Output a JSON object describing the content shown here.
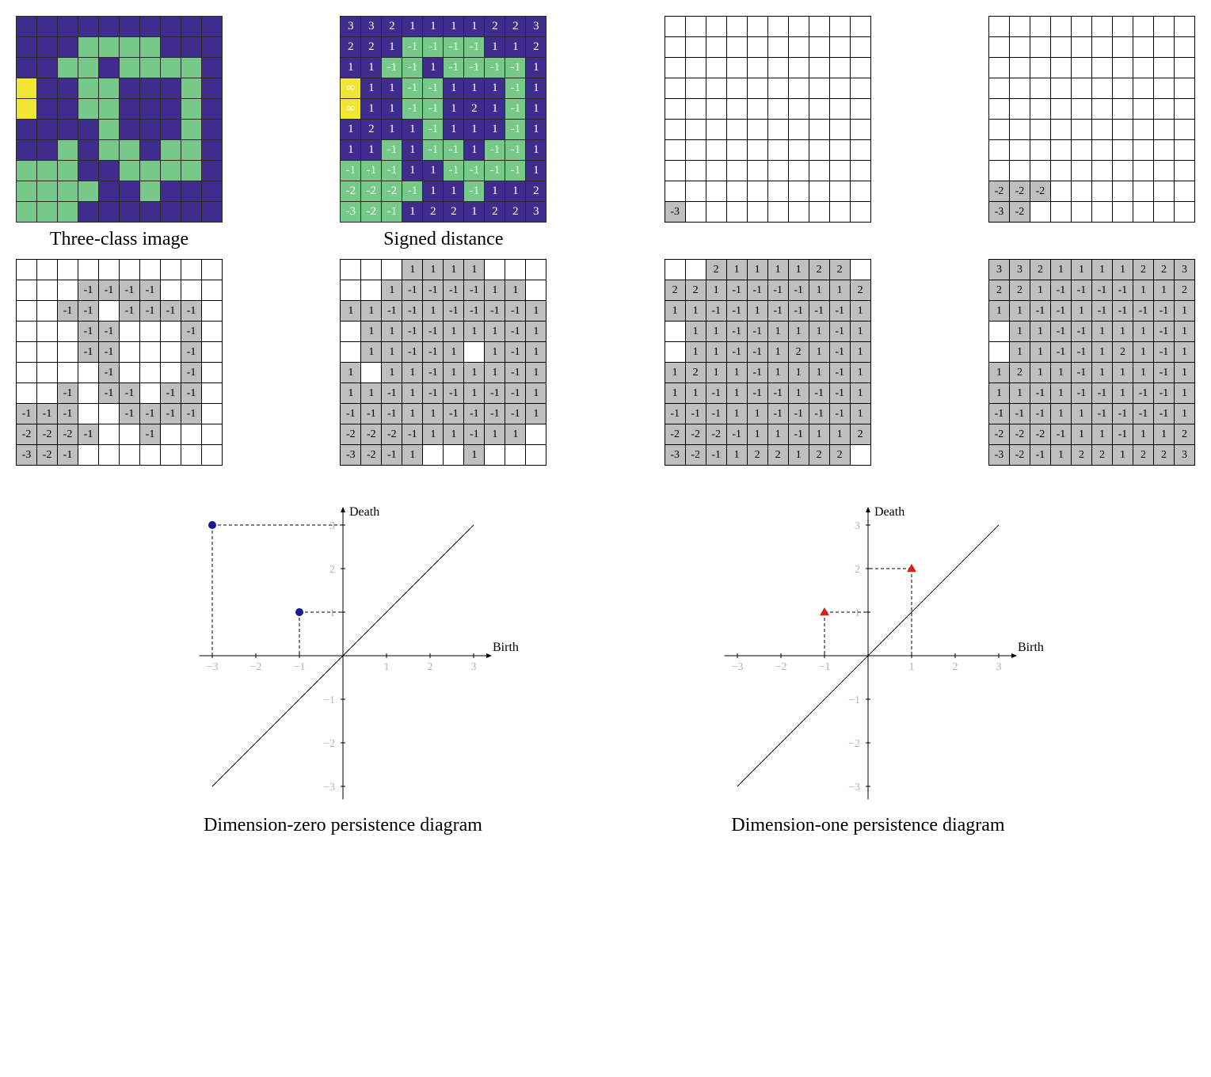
{
  "colors": {
    "purple": "#3e2d8c",
    "green": "#77c98a",
    "yellow": "#f2e635",
    "gray": "#bfbfbf",
    "white": "#ffffff",
    "black": "#000000",
    "dot0": "#1a1a8c",
    "dot1": "#d62020",
    "gridline": "#b2b2b2"
  },
  "captions": {
    "threeClass": "Three-class image",
    "signed": "Signed distance",
    "pd0": "Dimension-zero persistence diagram",
    "pd1": "Dimension-one persistence diagram"
  },
  "row1": {
    "threeClassColors": [
      [
        "p",
        "p",
        "p",
        "p",
        "p",
        "p",
        "p",
        "p",
        "p",
        "p"
      ],
      [
        "p",
        "p",
        "p",
        "g",
        "g",
        "g",
        "g",
        "p",
        "p",
        "p"
      ],
      [
        "p",
        "p",
        "g",
        "g",
        "p",
        "g",
        "g",
        "g",
        "g",
        "p"
      ],
      [
        "y",
        "p",
        "p",
        "g",
        "g",
        "p",
        "p",
        "p",
        "g",
        "p"
      ],
      [
        "y",
        "p",
        "p",
        "g",
        "g",
        "p",
        "p",
        "p",
        "g",
        "p"
      ],
      [
        "p",
        "p",
        "p",
        "p",
        "g",
        "p",
        "p",
        "p",
        "g",
        "p"
      ],
      [
        "p",
        "p",
        "g",
        "p",
        "g",
        "g",
        "p",
        "g",
        "g",
        "p"
      ],
      [
        "g",
        "g",
        "g",
        "p",
        "p",
        "g",
        "g",
        "g",
        "g",
        "p"
      ],
      [
        "g",
        "g",
        "g",
        "g",
        "p",
        "p",
        "g",
        "p",
        "p",
        "p"
      ],
      [
        "g",
        "g",
        "g",
        "p",
        "p",
        "p",
        "p",
        "p",
        "p",
        "p"
      ]
    ],
    "signedValues": [
      [
        "3",
        "3",
        "2",
        "1",
        "1",
        "1",
        "1",
        "2",
        "2",
        "3"
      ],
      [
        "2",
        "2",
        "1",
        "-1",
        "-1",
        "-1",
        "-1",
        "1",
        "1",
        "2"
      ],
      [
        "1",
        "1",
        "-1",
        "-1",
        "1",
        "-1",
        "-1",
        "-1",
        "-1",
        "1"
      ],
      [
        "∞",
        "1",
        "1",
        "-1",
        "-1",
        "1",
        "1",
        "1",
        "-1",
        "1"
      ],
      [
        "∞",
        "1",
        "1",
        "-1",
        "-1",
        "1",
        "2",
        "1",
        "-1",
        "1"
      ],
      [
        "1",
        "2",
        "1",
        "1",
        "-1",
        "1",
        "1",
        "1",
        "-1",
        "1"
      ],
      [
        "1",
        "1",
        "-1",
        "1",
        "-1",
        "-1",
        "1",
        "-1",
        "-1",
        "1"
      ],
      [
        "-1",
        "-1",
        "-1",
        "1",
        "1",
        "-1",
        "-1",
        "-1",
        "-1",
        "1"
      ],
      [
        "-2",
        "-2",
        "-2",
        "-1",
        "1",
        "1",
        "-1",
        "1",
        "1",
        "2"
      ],
      [
        "-3",
        "-2",
        "-1",
        "1",
        "2",
        "2",
        "1",
        "2",
        "2",
        "3"
      ]
    ],
    "signedColors": [
      [
        "p",
        "p",
        "p",
        "p",
        "p",
        "p",
        "p",
        "p",
        "p",
        "p"
      ],
      [
        "p",
        "p",
        "p",
        "g",
        "g",
        "g",
        "g",
        "p",
        "p",
        "p"
      ],
      [
        "p",
        "p",
        "g",
        "g",
        "p",
        "g",
        "g",
        "g",
        "g",
        "p"
      ],
      [
        "y",
        "p",
        "p",
        "g",
        "g",
        "p",
        "p",
        "p",
        "g",
        "p"
      ],
      [
        "y",
        "p",
        "p",
        "g",
        "g",
        "p",
        "p",
        "p",
        "g",
        "p"
      ],
      [
        "p",
        "p",
        "p",
        "p",
        "g",
        "p",
        "p",
        "p",
        "g",
        "p"
      ],
      [
        "p",
        "p",
        "g",
        "p",
        "g",
        "g",
        "p",
        "g",
        "g",
        "p"
      ],
      [
        "g",
        "g",
        "g",
        "p",
        "p",
        "g",
        "g",
        "g",
        "g",
        "p"
      ],
      [
        "g",
        "g",
        "g",
        "g",
        "p",
        "p",
        "g",
        "p",
        "p",
        "p"
      ],
      [
        "g",
        "g",
        "g",
        "p",
        "p",
        "p",
        "p",
        "p",
        "p",
        "p"
      ]
    ],
    "filtration_m3": [
      [
        "",
        "",
        "",
        "",
        "",
        "",
        "",
        "",
        "",
        ""
      ],
      [
        "",
        "",
        "",
        "",
        "",
        "",
        "",
        "",
        "",
        ""
      ],
      [
        "",
        "",
        "",
        "",
        "",
        "",
        "",
        "",
        "",
        ""
      ],
      [
        "",
        "",
        "",
        "",
        "",
        "",
        "",
        "",
        "",
        ""
      ],
      [
        "",
        "",
        "",
        "",
        "",
        "",
        "",
        "",
        "",
        ""
      ],
      [
        "",
        "",
        "",
        "",
        "",
        "",
        "",
        "",
        "",
        ""
      ],
      [
        "",
        "",
        "",
        "",
        "",
        "",
        "",
        "",
        "",
        ""
      ],
      [
        "",
        "",
        "",
        "",
        "",
        "",
        "",
        "",
        "",
        ""
      ],
      [
        "",
        "",
        "",
        "",
        "",
        "",
        "",
        "",
        "",
        ""
      ],
      [
        "-3",
        "",
        "",
        "",
        "",
        "",
        "",
        "",
        "",
        ""
      ]
    ],
    "filtration_m2": [
      [
        "",
        "",
        "",
        "",
        "",
        "",
        "",
        "",
        "",
        ""
      ],
      [
        "",
        "",
        "",
        "",
        "",
        "",
        "",
        "",
        "",
        ""
      ],
      [
        "",
        "",
        "",
        "",
        "",
        "",
        "",
        "",
        "",
        ""
      ],
      [
        "",
        "",
        "",
        "",
        "",
        "",
        "",
        "",
        "",
        ""
      ],
      [
        "",
        "",
        "",
        "",
        "",
        "",
        "",
        "",
        "",
        ""
      ],
      [
        "",
        "",
        "",
        "",
        "",
        "",
        "",
        "",
        "",
        ""
      ],
      [
        "",
        "",
        "",
        "",
        "",
        "",
        "",
        "",
        "",
        ""
      ],
      [
        "",
        "",
        "",
        "",
        "",
        "",
        "",
        "",
        "",
        ""
      ],
      [
        "-2",
        "-2",
        "-2",
        "",
        "",
        "",
        "",
        "",
        "",
        ""
      ],
      [
        "-3",
        "-2",
        "",
        "",
        "",
        "",
        "",
        "",
        "",
        ""
      ]
    ]
  },
  "row2": {
    "filtration_m1": [
      [
        "",
        "",
        "",
        "",
        "",
        "",
        "",
        "",
        "",
        ""
      ],
      [
        "",
        "",
        "",
        "-1",
        "-1",
        "-1",
        "-1",
        "",
        "",
        ""
      ],
      [
        "",
        "",
        "-1",
        "-1",
        "",
        "-1",
        "-1",
        "-1",
        "-1",
        ""
      ],
      [
        "",
        "",
        "",
        "-1",
        "-1",
        "",
        "",
        "",
        "-1",
        ""
      ],
      [
        "",
        "",
        "",
        "-1",
        "-1",
        "",
        "",
        "",
        "-1",
        ""
      ],
      [
        "",
        "",
        "",
        "",
        "-1",
        "",
        "",
        "",
        "-1",
        ""
      ],
      [
        "",
        "",
        "-1",
        "",
        "-1",
        "-1",
        "",
        "-1",
        "-1",
        ""
      ],
      [
        "-1",
        "-1",
        "-1",
        "",
        "",
        "-1",
        "-1",
        "-1",
        "-1",
        ""
      ],
      [
        "-2",
        "-2",
        "-2",
        "-1",
        "",
        "",
        "-1",
        "",
        "",
        ""
      ],
      [
        "-3",
        "-2",
        "-1",
        "",
        "",
        "",
        "",
        "",
        "",
        ""
      ]
    ],
    "filtration_1": [
      [
        "",
        "",
        "",
        "1",
        "1",
        "1",
        "1",
        "",
        "",
        ""
      ],
      [
        "",
        "",
        "1",
        "-1",
        "-1",
        "-1",
        "-1",
        "1",
        "1",
        ""
      ],
      [
        "1",
        "1",
        "-1",
        "-1",
        "1",
        "-1",
        "-1",
        "-1",
        "-1",
        "1"
      ],
      [
        "",
        "1",
        "1",
        "-1",
        "-1",
        "1",
        "1",
        "1",
        "-1",
        "1"
      ],
      [
        "",
        "1",
        "1",
        "-1",
        "-1",
        "1",
        "",
        "1",
        "-1",
        "1"
      ],
      [
        "1",
        "",
        "1",
        "1",
        "-1",
        "1",
        "1",
        "1",
        "-1",
        "1"
      ],
      [
        "1",
        "1",
        "-1",
        "1",
        "-1",
        "-1",
        "1",
        "-1",
        "-1",
        "1"
      ],
      [
        "-1",
        "-1",
        "-1",
        "1",
        "1",
        "-1",
        "-1",
        "-1",
        "-1",
        "1"
      ],
      [
        "-2",
        "-2",
        "-2",
        "-1",
        "1",
        "1",
        "-1",
        "1",
        "1",
        ""
      ],
      [
        "-3",
        "-2",
        "-1",
        "1",
        "",
        "",
        "1",
        "",
        "",
        ""
      ]
    ],
    "filtration_2": [
      [
        "",
        "",
        "2",
        "1",
        "1",
        "1",
        "1",
        "2",
        "2",
        ""
      ],
      [
        "2",
        "2",
        "1",
        "-1",
        "-1",
        "-1",
        "-1",
        "1",
        "1",
        "2"
      ],
      [
        "1",
        "1",
        "-1",
        "-1",
        "1",
        "-1",
        "-1",
        "-1",
        "-1",
        "1"
      ],
      [
        "",
        "1",
        "1",
        "-1",
        "-1",
        "1",
        "1",
        "1",
        "-1",
        "1"
      ],
      [
        "",
        "1",
        "1",
        "-1",
        "-1",
        "1",
        "2",
        "1",
        "-1",
        "1"
      ],
      [
        "1",
        "2",
        "1",
        "1",
        "-1",
        "1",
        "1",
        "1",
        "-1",
        "1"
      ],
      [
        "1",
        "1",
        "-1",
        "1",
        "-1",
        "-1",
        "1",
        "-1",
        "-1",
        "1"
      ],
      [
        "-1",
        "-1",
        "-1",
        "1",
        "1",
        "-1",
        "-1",
        "-1",
        "-1",
        "1"
      ],
      [
        "-2",
        "-2",
        "-2",
        "-1",
        "1",
        "1",
        "-1",
        "1",
        "1",
        "2"
      ],
      [
        "-3",
        "-2",
        "-1",
        "1",
        "2",
        "2",
        "1",
        "2",
        "2",
        ""
      ]
    ],
    "filtration_3": [
      [
        "3",
        "3",
        "2",
        "1",
        "1",
        "1",
        "1",
        "2",
        "2",
        "3"
      ],
      [
        "2",
        "2",
        "1",
        "-1",
        "-1",
        "-1",
        "-1",
        "1",
        "1",
        "2"
      ],
      [
        "1",
        "1",
        "-1",
        "-1",
        "1",
        "-1",
        "-1",
        "-1",
        "-1",
        "1"
      ],
      [
        "",
        "1",
        "1",
        "-1",
        "-1",
        "1",
        "1",
        "1",
        "-1",
        "1"
      ],
      [
        "",
        "1",
        "1",
        "-1",
        "-1",
        "1",
        "2",
        "1",
        "-1",
        "1"
      ],
      [
        "1",
        "2",
        "1",
        "1",
        "-1",
        "1",
        "1",
        "1",
        "-1",
        "1"
      ],
      [
        "1",
        "1",
        "-1",
        "1",
        "-1",
        "-1",
        "1",
        "-1",
        "-1",
        "1"
      ],
      [
        "-1",
        "-1",
        "-1",
        "1",
        "1",
        "-1",
        "-1",
        "-1",
        "-1",
        "1"
      ],
      [
        "-2",
        "-2",
        "-2",
        "-1",
        "1",
        "1",
        "-1",
        "1",
        "1",
        "2"
      ],
      [
        "-3",
        "-2",
        "-1",
        "1",
        "2",
        "2",
        "1",
        "2",
        "2",
        "3"
      ]
    ]
  },
  "plots": {
    "axis": {
      "min": -3,
      "max": 3,
      "xlabel": "Birth",
      "ylabel": "Death"
    },
    "pd0": {
      "points": [
        {
          "x": -3,
          "y": 3
        },
        {
          "x": -1,
          "y": 1
        }
      ]
    },
    "pd1": {
      "points": [
        {
          "x": -1,
          "y": 1
        },
        {
          "x": 1,
          "y": 2
        }
      ]
    }
  }
}
